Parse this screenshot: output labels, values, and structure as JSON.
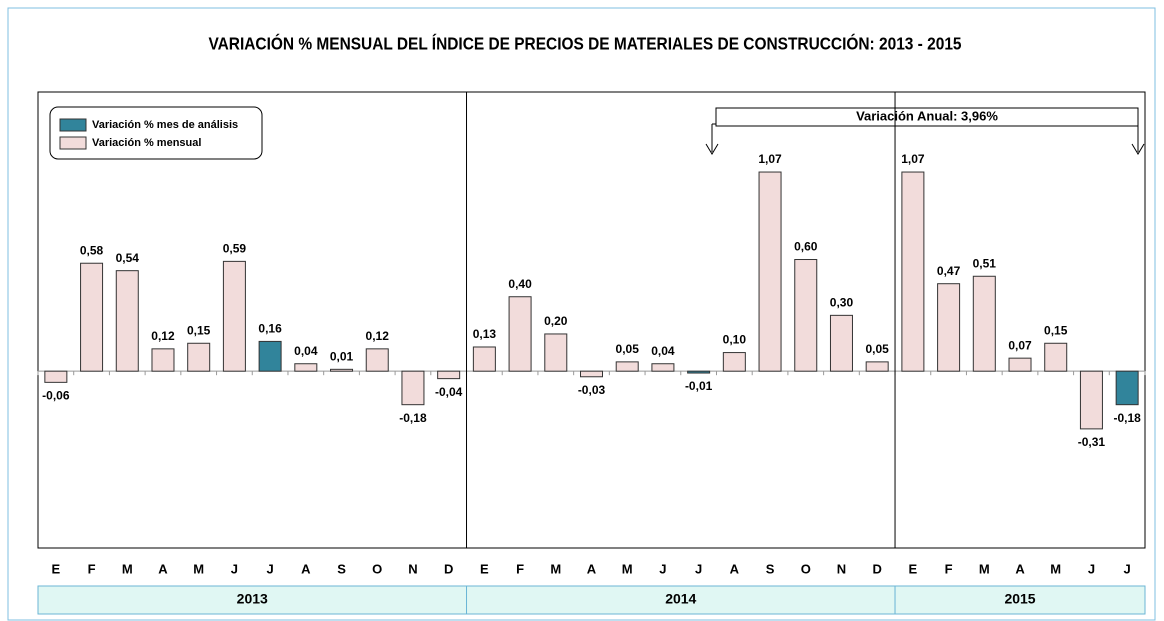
{
  "chart_data": {
    "type": "bar",
    "title": "VARIACIÓN % MENSUAL DEL ÍNDICE DE PRECIOS DE MATERIALES DE CONSTRUCCIÓN:  2013 - 2015",
    "ylim": [
      -0.95,
      1.5
    ],
    "legend": [
      {
        "name": "Variación % mes de análisis",
        "color": "#31849b"
      },
      {
        "name": "Variación % mensual",
        "color": "#f2dcdb"
      }
    ],
    "annotation": "Variación Anual: 3,96%",
    "groups": [
      {
        "label": "2013",
        "categories": [
          "E",
          "F",
          "M",
          "A",
          "M",
          "J",
          "J",
          "A",
          "S",
          "O",
          "N",
          "D"
        ],
        "values": [
          -0.06,
          0.58,
          0.54,
          0.12,
          0.15,
          0.59,
          0.16,
          0.04,
          0.01,
          0.12,
          -0.18,
          -0.04
        ],
        "value_labels": [
          "-0,06",
          "0,58",
          "0,54",
          "0,12",
          "0,15",
          "0,59",
          "0,16",
          "0,04",
          "0,01",
          "0,12",
          "-0,18",
          "-0,04"
        ],
        "colors": [
          "#f2dcdb",
          "#f2dcdb",
          "#f2dcdb",
          "#f2dcdb",
          "#f2dcdb",
          "#f2dcdb",
          "#31849b",
          "#f2dcdb",
          "#f2dcdb",
          "#f2dcdb",
          "#f2dcdb",
          "#f2dcdb"
        ]
      },
      {
        "label": "2014",
        "categories": [
          "E",
          "F",
          "M",
          "A",
          "M",
          "J",
          "J",
          "A",
          "S",
          "O",
          "N",
          "D"
        ],
        "values": [
          0.13,
          0.4,
          0.2,
          -0.03,
          0.05,
          0.04,
          -0.01,
          0.1,
          1.07,
          0.6,
          0.3,
          0.05
        ],
        "value_labels": [
          "0,13",
          "0,40",
          "0,20",
          "-0,03",
          "0,05",
          "0,04",
          "-0,01",
          "0,10",
          "1,07",
          "0,60",
          "0,30",
          "0,05"
        ],
        "colors": [
          "#f2dcdb",
          "#f2dcdb",
          "#f2dcdb",
          "#f2dcdb",
          "#f2dcdb",
          "#f2dcdb",
          "#31849b",
          "#f2dcdb",
          "#f2dcdb",
          "#f2dcdb",
          "#f2dcdb",
          "#f2dcdb"
        ]
      },
      {
        "label": "2015",
        "categories": [
          "E",
          "F",
          "M",
          "A",
          "M",
          "J",
          "J"
        ],
        "values": [
          1.07,
          0.47,
          0.51,
          0.07,
          0.15,
          -0.31,
          -0.18
        ],
        "value_labels": [
          "1,07",
          "0,47",
          "0,51",
          "0,07",
          "0,15",
          "-0,31",
          "-0,18"
        ],
        "colors": [
          "#f2dcdb",
          "#f2dcdb",
          "#f2dcdb",
          "#f2dcdb",
          "#f2dcdb",
          "#f2dcdb",
          "#31849b"
        ]
      }
    ]
  }
}
